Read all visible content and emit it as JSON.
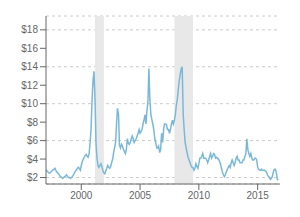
{
  "chart_data": {
    "type": "line",
    "x": [
      1997.0,
      1997.08,
      1997.17,
      1997.25,
      1997.33,
      1997.42,
      1997.5,
      1997.58,
      1997.67,
      1997.75,
      1997.83,
      1997.92,
      1998.0,
      1998.08,
      1998.17,
      1998.25,
      1998.33,
      1998.42,
      1998.5,
      1998.58,
      1998.67,
      1998.75,
      1998.83,
      1998.92,
      1999.0,
      1999.08,
      1999.17,
      1999.25,
      1999.33,
      1999.42,
      1999.5,
      1999.58,
      1999.67,
      1999.75,
      1999.83,
      1999.92,
      2000.0,
      2000.08,
      2000.17,
      2000.25,
      2000.33,
      2000.42,
      2000.5,
      2000.58,
      2000.67,
      2000.75,
      2000.83,
      2000.92,
      2001.0,
      2001.08,
      2001.17,
      2001.25,
      2001.33,
      2001.42,
      2001.5,
      2001.58,
      2001.67,
      2001.75,
      2001.83,
      2001.92,
      2002.0,
      2002.08,
      2002.17,
      2002.25,
      2002.33,
      2002.42,
      2002.5,
      2002.58,
      2002.67,
      2002.75,
      2002.83,
      2002.92,
      2003.0,
      2003.08,
      2003.17,
      2003.25,
      2003.33,
      2003.42,
      2003.5,
      2003.58,
      2003.67,
      2003.75,
      2003.83,
      2003.92,
      2004.0,
      2004.08,
      2004.17,
      2004.25,
      2004.33,
      2004.42,
      2004.5,
      2004.58,
      2004.67,
      2004.75,
      2004.83,
      2004.92,
      2005.0,
      2005.08,
      2005.17,
      2005.25,
      2005.33,
      2005.42,
      2005.5,
      2005.58,
      2005.67,
      2005.75,
      2005.83,
      2005.92,
      2006.0,
      2006.08,
      2006.17,
      2006.25,
      2006.33,
      2006.42,
      2006.5,
      2006.58,
      2006.67,
      2006.75,
      2006.83,
      2006.92,
      2007.0,
      2007.08,
      2007.17,
      2007.25,
      2007.33,
      2007.42,
      2007.5,
      2007.58,
      2007.67,
      2007.75,
      2007.83,
      2007.92,
      2008.0,
      2008.08,
      2008.17,
      2008.25,
      2008.33,
      2008.42,
      2008.5,
      2008.58,
      2008.67,
      2008.75,
      2008.83,
      2008.92,
      2009.0,
      2009.08,
      2009.17,
      2009.25,
      2009.33,
      2009.42,
      2009.5,
      2009.58,
      2009.67,
      2009.75,
      2009.83,
      2009.92,
      2010.0,
      2010.08,
      2010.17,
      2010.25,
      2010.33,
      2010.42,
      2010.5,
      2010.58,
      2010.67,
      2010.75,
      2010.83,
      2010.92,
      2011.0,
      2011.08,
      2011.17,
      2011.25,
      2011.33,
      2011.42,
      2011.5,
      2011.58,
      2011.67,
      2011.75,
      2011.83,
      2011.92,
      2012.0,
      2012.08,
      2012.17,
      2012.25,
      2012.33,
      2012.42,
      2012.5,
      2012.58,
      2012.67,
      2012.75,
      2012.83,
      2012.92,
      2013.0,
      2013.08,
      2013.17,
      2013.25,
      2013.33,
      2013.42,
      2013.5,
      2013.58,
      2013.67,
      2013.75,
      2013.83,
      2013.92,
      2014.0,
      2014.08,
      2014.17,
      2014.25,
      2014.33,
      2014.42,
      2014.5,
      2014.58,
      2014.67,
      2014.75,
      2014.83,
      2014.92,
      2015.0,
      2015.08,
      2015.17,
      2015.25,
      2015.33,
      2015.42,
      2015.5,
      2015.58,
      2015.67,
      2015.75,
      2015.83,
      2015.92,
      2016.0,
      2016.08,
      2016.17,
      2016.25,
      2016.33,
      2016.42,
      2016.5,
      2016.58,
      2016.67,
      2016.75
    ],
    "values": [
      2.9,
      2.7,
      2.6,
      2.5,
      2.5,
      2.6,
      2.7,
      2.8,
      2.9,
      3.0,
      2.8,
      2.6,
      2.5,
      2.4,
      2.2,
      2.1,
      2.0,
      1.9,
      2.0,
      2.1,
      2.2,
      2.3,
      2.1,
      2.0,
      2.0,
      1.9,
      2.0,
      2.1,
      2.3,
      2.5,
      2.7,
      2.8,
      3.0,
      3.1,
      3.0,
      2.8,
      3.3,
      3.7,
      4.0,
      4.2,
      4.4,
      4.5,
      4.3,
      4.2,
      4.6,
      5.8,
      7.2,
      10.5,
      12.5,
      13.5,
      10.5,
      5.8,
      4.2,
      3.3,
      3.1,
      3.3,
      3.5,
      3.2,
      2.8,
      2.5,
      2.4,
      2.7,
      3.0,
      3.3,
      3.1,
      3.0,
      3.2,
      3.6,
      4.0,
      4.7,
      5.2,
      5.8,
      7.8,
      9.5,
      8.8,
      5.5,
      5.2,
      5.6,
      5.4,
      5.1,
      4.8,
      4.6,
      5.0,
      6.2,
      5.7,
      5.6,
      5.8,
      6.2,
      6.5,
      6.2,
      5.8,
      6.0,
      6.2,
      6.5,
      6.8,
      7.2,
      6.8,
      7.0,
      7.2,
      7.8,
      8.2,
      8.8,
      7.8,
      9.2,
      10.2,
      13.8,
      10.5,
      8.8,
      8.3,
      7.8,
      7.2,
      6.2,
      5.8,
      5.2,
      5.2,
      5.4,
      4.7,
      5.0,
      6.8,
      5.8,
      7.2,
      7.8,
      7.8,
      7.7,
      7.2,
      7.2,
      6.8,
      7.2,
      7.8,
      8.2,
      7.8,
      8.2,
      8.8,
      9.8,
      10.5,
      11.5,
      12.5,
      13.2,
      13.8,
      14.0,
      8.8,
      7.2,
      5.8,
      5.2,
      4.7,
      4.2,
      3.9,
      3.6,
      3.3,
      3.1,
      3.1,
      2.8,
      3.0,
      3.5,
      3.2,
      3.0,
      3.5,
      4.1,
      4.1,
      4.3,
      4.6,
      4.1,
      4.1,
      4.1,
      3.9,
      3.6,
      3.9,
      4.3,
      4.6,
      4.1,
      4.3,
      4.6,
      4.5,
      4.1,
      4.2,
      4.1,
      4.0,
      3.8,
      3.5,
      3.0,
      2.6,
      2.3,
      2.1,
      2.3,
      2.6,
      2.9,
      3.1,
      3.3,
      3.1,
      3.6,
      3.9,
      3.6,
      3.3,
      3.6,
      4.1,
      4.3,
      3.9,
      3.9,
      3.6,
      3.6,
      3.6,
      3.9,
      3.9,
      4.3,
      4.6,
      6.2,
      5.0,
      4.6,
      4.3,
      4.6,
      4.1,
      3.9,
      3.9,
      4.1,
      4.1,
      3.9,
      3.1,
      2.9,
      2.8,
      2.8,
      2.9,
      2.8,
      2.8,
      2.8,
      2.7,
      2.6,
      2.3,
      2.1,
      2.0,
      1.8,
      1.9,
      2.1,
      2.6,
      2.9,
      2.9,
      2.6,
      1.8,
      1.7
    ],
    "color": "#7ab8d9",
    "xlim": [
      1997.0,
      2016.9
    ],
    "ylim": [
      1.3,
      19.5
    ],
    "xticks": [
      2000,
      2005,
      2010,
      2015
    ],
    "yticks": [
      {
        "value": 2,
        "label": "$2"
      },
      {
        "value": 4,
        "label": "$4"
      },
      {
        "value": 6,
        "label": "$6"
      },
      {
        "value": 8,
        "label": "$8"
      },
      {
        "value": 10,
        "label": "$10"
      },
      {
        "value": 12,
        "label": "$12"
      },
      {
        "value": 14,
        "label": "$14"
      },
      {
        "value": 16,
        "label": "$16"
      },
      {
        "value": 18,
        "label": "$18"
      }
    ],
    "grid": true,
    "shaded_ranges": [
      {
        "from": 2001.17,
        "to": 2001.92,
        "color": "#e8e8e8"
      },
      {
        "from": 2007.92,
        "to": 2009.5,
        "color": "#e8e8e8"
      }
    ]
  }
}
